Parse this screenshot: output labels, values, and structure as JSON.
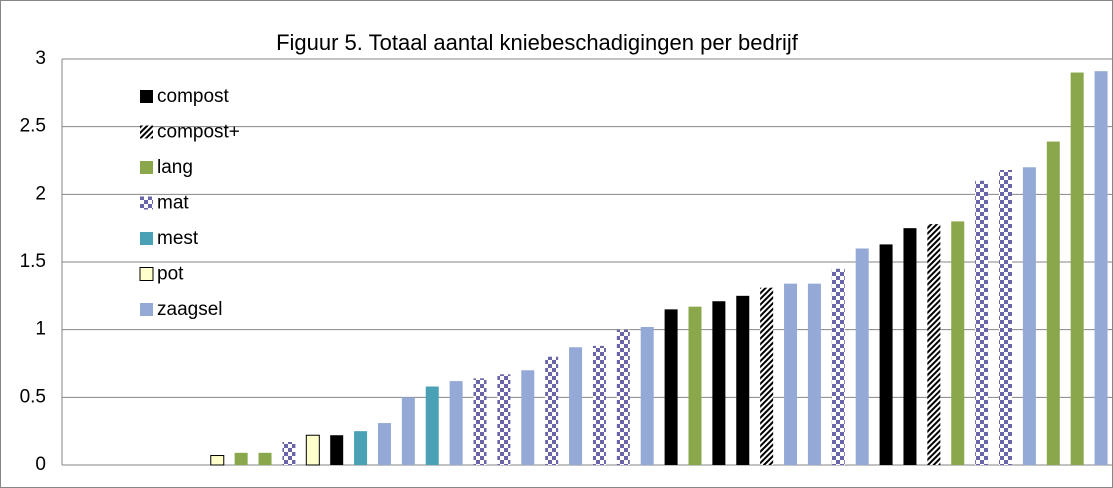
{
  "chart_data": {
    "type": "bar",
    "title": "Figuur 5. Totaal aantal kniebeschadigingen per bedrijf",
    "categories": [
      null,
      null,
      null,
      null,
      null,
      null,
      null,
      null,
      null,
      null,
      null,
      null,
      null,
      null,
      null,
      null,
      null,
      null,
      null,
      null,
      null,
      null,
      null,
      null,
      null,
      null,
      null,
      null,
      null,
      null,
      null,
      null,
      null,
      null,
      null,
      null,
      null,
      null,
      null,
      null,
      null,
      null,
      null,
      null
    ],
    "ylim": [
      0,
      3
    ],
    "yticks": [
      0,
      0.5,
      1,
      1.5,
      2,
      2.5,
      3
    ],
    "grid": true,
    "legend": "top-left",
    "series": [
      {
        "name": "compost",
        "color": "#000000",
        "pattern": "solid",
        "values": [
          null,
          null,
          null,
          null,
          null,
          null,
          null,
          null,
          null,
          null,
          null,
          0.22,
          null,
          null,
          null,
          null,
          null,
          null,
          null,
          null,
          null,
          null,
          null,
          null,
          null,
          1.15,
          null,
          1.21,
          1.25,
          null,
          null,
          null,
          null,
          null,
          1.63,
          1.75,
          null,
          null,
          null,
          null,
          null,
          null,
          null,
          null
        ]
      },
      {
        "name": "compost+",
        "color": "#000000",
        "pattern": "diagonal",
        "values": [
          null,
          null,
          null,
          null,
          null,
          null,
          null,
          null,
          null,
          null,
          null,
          null,
          null,
          null,
          null,
          null,
          null,
          null,
          null,
          null,
          null,
          null,
          null,
          null,
          null,
          null,
          null,
          null,
          null,
          1.31,
          null,
          null,
          null,
          null,
          null,
          null,
          1.78,
          null,
          null,
          null,
          null,
          null,
          null,
          null
        ]
      },
      {
        "name": "lang",
        "color": "#8aa84b",
        "pattern": "solid",
        "values": [
          null,
          null,
          null,
          null,
          null,
          null,
          null,
          0.09,
          0.09,
          null,
          null,
          null,
          null,
          null,
          null,
          null,
          null,
          null,
          null,
          null,
          null,
          null,
          null,
          null,
          null,
          null,
          1.17,
          null,
          null,
          null,
          null,
          null,
          null,
          null,
          null,
          null,
          null,
          1.8,
          null,
          null,
          null,
          2.39,
          2.9,
          null
        ]
      },
      {
        "name": "mat",
        "color": "#6a65a8",
        "pattern": "checker",
        "values": [
          null,
          null,
          null,
          null,
          null,
          null,
          null,
          null,
          null,
          0.17,
          null,
          null,
          null,
          null,
          null,
          null,
          null,
          0.64,
          0.67,
          null,
          0.8,
          null,
          0.88,
          1.0,
          null,
          null,
          null,
          null,
          null,
          null,
          null,
          null,
          1.45,
          null,
          null,
          null,
          null,
          null,
          2.1,
          2.18,
          null,
          null,
          null,
          null
        ]
      },
      {
        "name": "mest",
        "color": "#4aa0b5",
        "pattern": "solid",
        "values": [
          null,
          null,
          null,
          null,
          null,
          null,
          null,
          null,
          null,
          null,
          null,
          null,
          0.25,
          null,
          null,
          0.58,
          null,
          null,
          null,
          null,
          null,
          null,
          null,
          null,
          null,
          null,
          null,
          null,
          null,
          null,
          null,
          null,
          null,
          null,
          null,
          null,
          null,
          null,
          null,
          null,
          null,
          null,
          null,
          null
        ]
      },
      {
        "name": "pot",
        "color": "#ffffcc",
        "pattern": "outlined",
        "values": [
          null,
          null,
          null,
          null,
          null,
          null,
          0.07,
          null,
          null,
          null,
          0.22,
          null,
          null,
          null,
          null,
          null,
          null,
          null,
          null,
          null,
          null,
          null,
          null,
          null,
          null,
          null,
          null,
          null,
          null,
          null,
          null,
          null,
          null,
          null,
          null,
          null,
          null,
          null,
          null,
          null,
          null,
          null,
          null,
          null
        ]
      },
      {
        "name": "zaagsel",
        "color": "#95a9d6",
        "pattern": "solid",
        "values": [
          null,
          null,
          null,
          null,
          null,
          null,
          null,
          null,
          null,
          null,
          null,
          null,
          null,
          0.31,
          0.5,
          null,
          0.62,
          null,
          null,
          0.7,
          null,
          0.87,
          null,
          null,
          1.02,
          null,
          null,
          null,
          null,
          null,
          1.34,
          1.34,
          null,
          1.6,
          null,
          null,
          null,
          null,
          null,
          null,
          2.2,
          null,
          null,
          2.91
        ]
      }
    ]
  }
}
